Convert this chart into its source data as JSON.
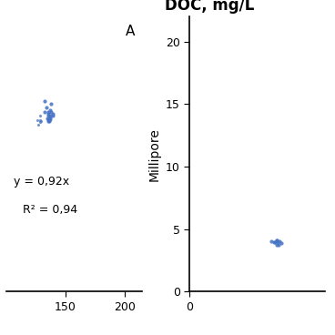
{
  "panel_A": {
    "label": "A",
    "eq_text": "y = 0,92x",
    "r2_text": "R² = 0,94",
    "xlim": [
      100,
      215
    ],
    "ylim": [
      100,
      215
    ],
    "xticks": [
      150,
      200
    ],
    "dot_color": "#4472C4",
    "cluster1_x_mean": 136,
    "cluster1_x_std": 2.0,
    "cluster1_y_mean": 175,
    "cluster1_y_std": 2.5,
    "cluster1_n": 18,
    "cluster2_x_mean": 128,
    "cluster2_x_std": 1.2,
    "cluster2_y_mean": 172,
    "cluster2_y_std": 1.5,
    "cluster2_n": 6
  },
  "panel_B": {
    "title": "DOC, mg/L",
    "ylabel": "Millipore",
    "xlim": [
      0,
      7
    ],
    "ylim": [
      0,
      22
    ],
    "xticks": [
      0
    ],
    "yticks": [
      0,
      5,
      10,
      15,
      20
    ],
    "dot_color": "#4472C4",
    "cluster_x_mean": 4.5,
    "cluster_x_std": 0.15,
    "cluster_y_mean": 4.0,
    "cluster_y_std": 0.2,
    "cluster_n": 10
  },
  "background_color": "#ffffff",
  "border_color": "#000000"
}
